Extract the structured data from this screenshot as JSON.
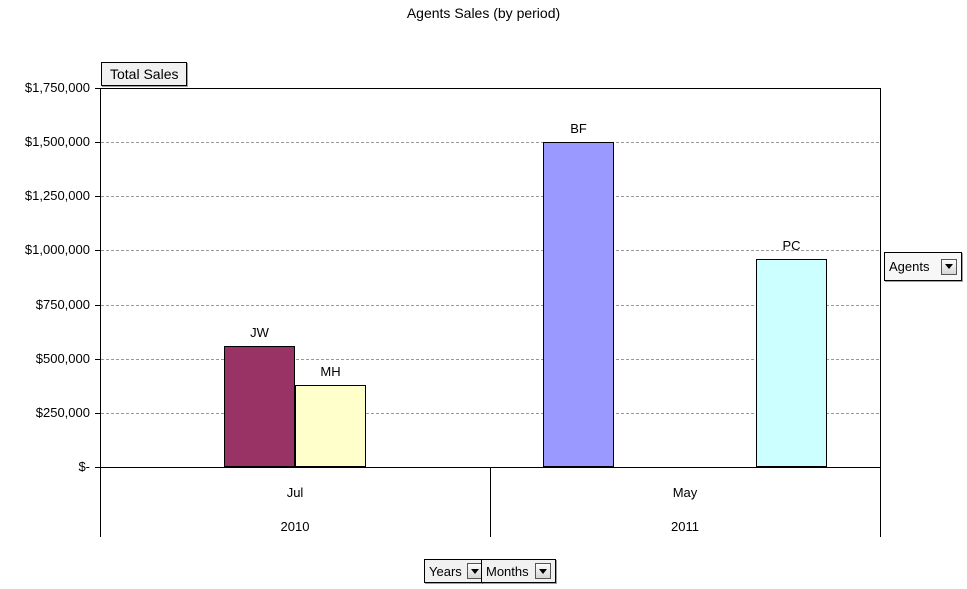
{
  "title": "Agents Sales (by period)",
  "buttons": {
    "total_sales": "Total Sales",
    "agents": "Agents",
    "years": "Years",
    "months": "Months"
  },
  "chart_data": {
    "type": "bar",
    "title": "Agents Sales (by period)",
    "value_axis": {
      "min": 0,
      "max": 1750000,
      "tick_step": 250000,
      "tick_labels": [
        "$-",
        "$250,000",
        "$500,000",
        "$750,000",
        "$1,000,000",
        "$1,250,000",
        "$1,500,000",
        "$1,750,000"
      ],
      "gridlines": "dashed",
      "gridline_color": "#999999"
    },
    "category_axis": {
      "levels": [
        "Months",
        "Years"
      ],
      "groups_order": [
        "Jul 2010",
        "May 2011"
      ]
    },
    "series_order": [
      "BF",
      "JW",
      "MH",
      "PC"
    ],
    "legend": "none",
    "groups": [
      {
        "year": "2010",
        "month": "Jul",
        "bars": [
          {
            "agent": "JW",
            "value": 560000,
            "color": "#993366"
          },
          {
            "agent": "MH",
            "value": 380000,
            "color": "#FFFFCC"
          }
        ]
      },
      {
        "year": "2011",
        "month": "May",
        "bars": [
          {
            "agent": "BF",
            "value": 1500000,
            "color": "#9999FF"
          },
          {
            "agent": "PC",
            "value": 960000,
            "color": "#CCFFFF"
          }
        ]
      }
    ]
  }
}
